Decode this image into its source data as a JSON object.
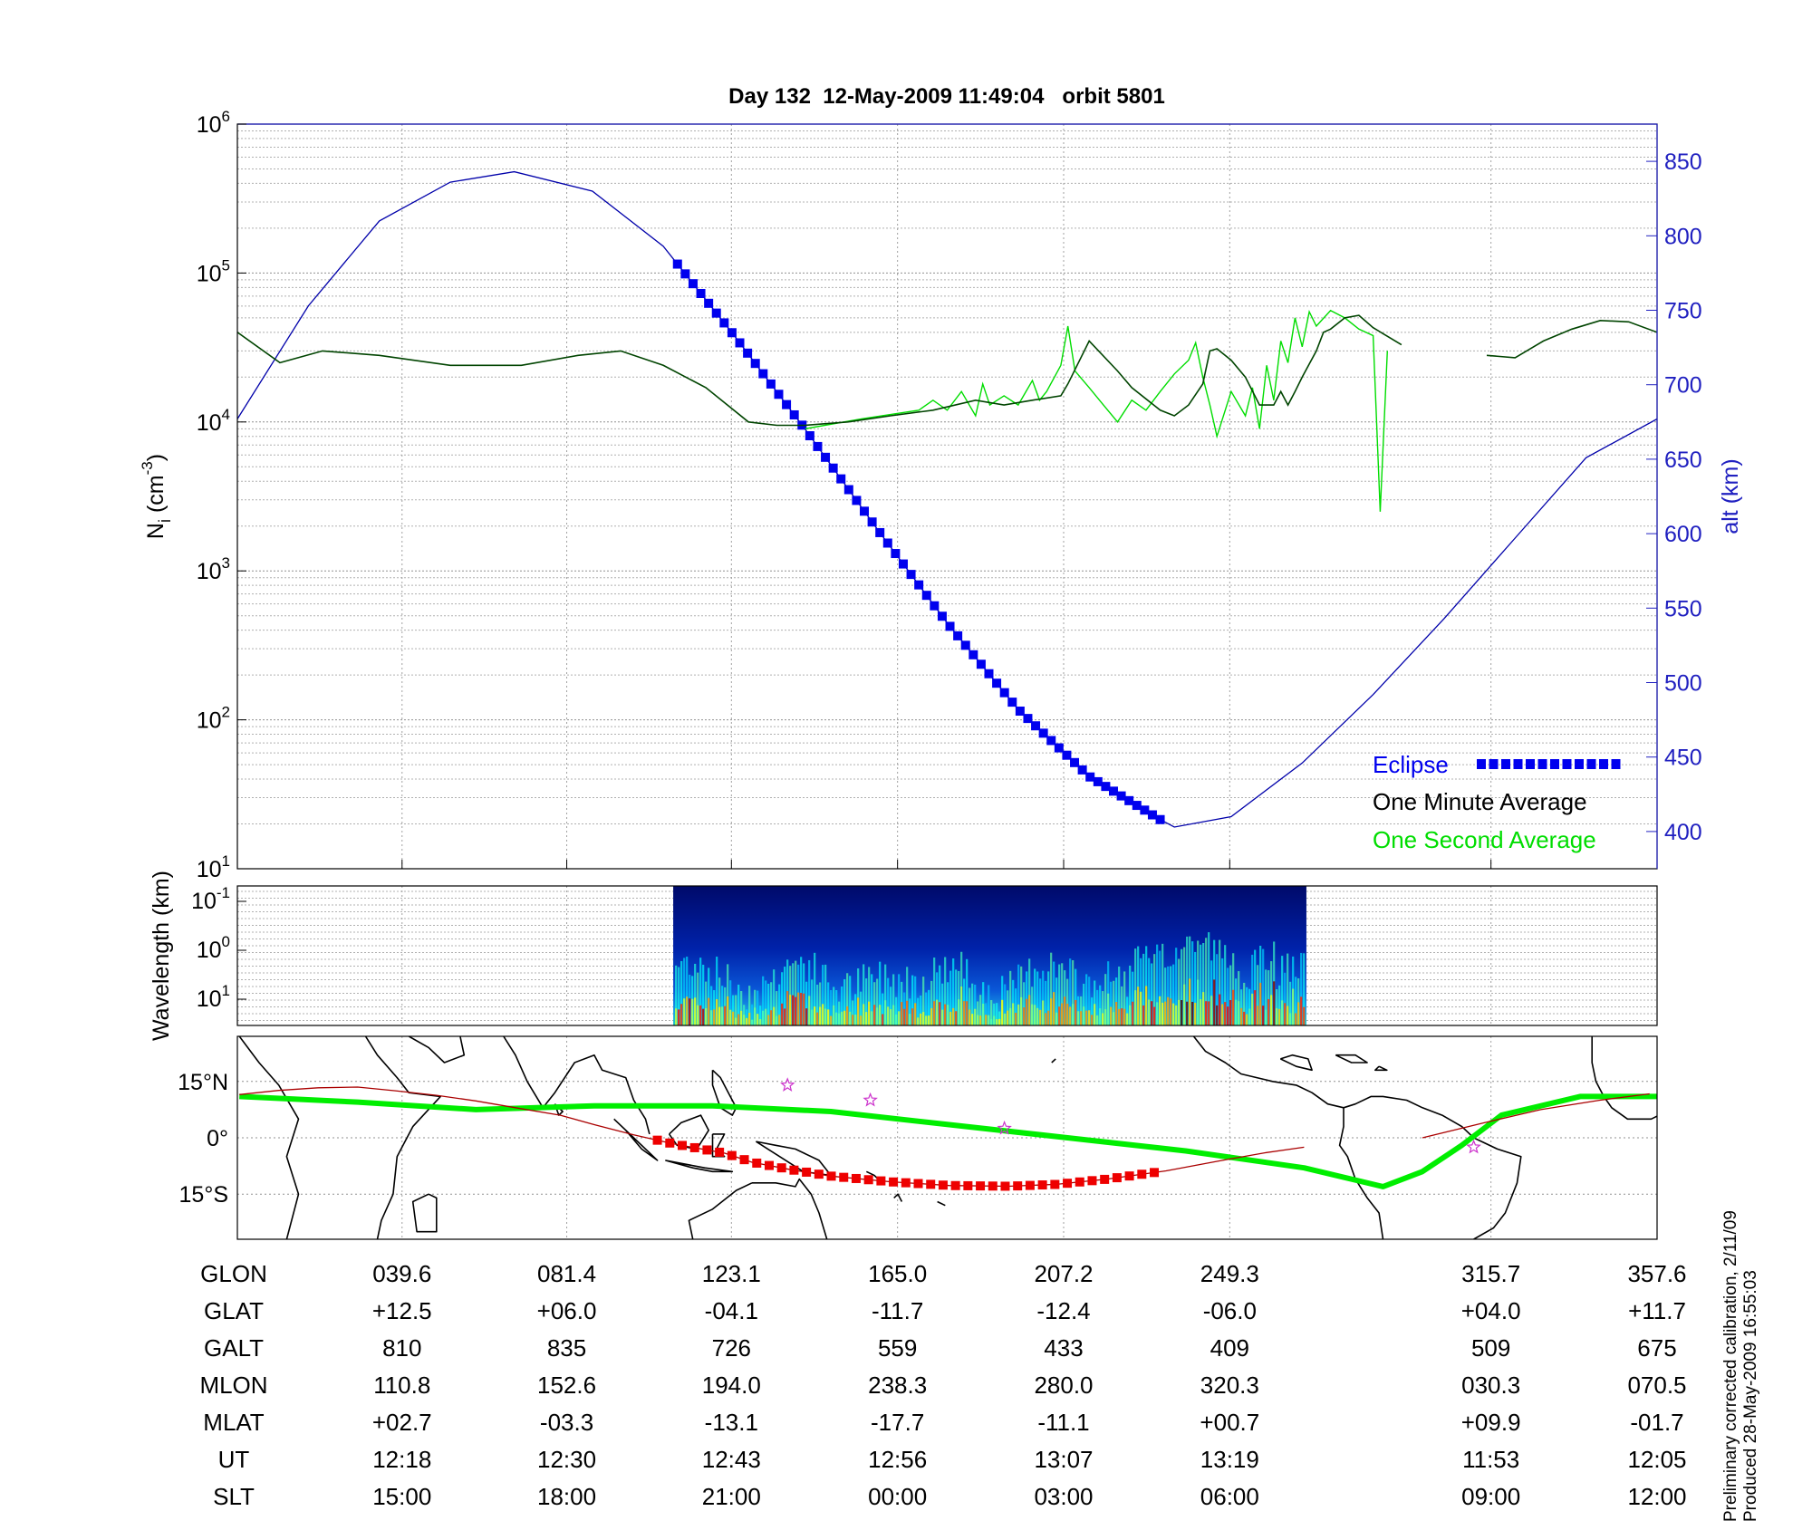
{
  "figure": {
    "title": "Day 132  12-May-2009 11:49:04   orbit 5801",
    "side_note_1": "Preliminary corrected calibration, 2/11/09",
    "side_note_2": "Produced 28-May-2009 16:55:03"
  },
  "colors": {
    "density_1s": "#00dd00",
    "density_1min": "#004400",
    "altitude": "#0000aa",
    "eclipse": "#0000ee",
    "track_eclipse": "#ee0000",
    "track_line": "#aa0000",
    "magnetic_equator": "#00ee00",
    "right_axis": "#2020c0",
    "star": "#cc33cc"
  },
  "chart_data": [
    {
      "type": "line",
      "panel": "ion density and altitude",
      "ylabel_main": "N",
      "ylabel_sub": "i",
      "ylabel_tail": " (cm",
      "ylabel_exp": "-3",
      "ylabel_close": ")",
      "y_scale": "log",
      "ylim": [
        10,
        1000000
      ],
      "y_ticks": [
        {
          "base": "10",
          "exp": "1",
          "value": 10
        },
        {
          "base": "10",
          "exp": "2",
          "value": 100
        },
        {
          "base": "10",
          "exp": "3",
          "value": 1000
        },
        {
          "base": "10",
          "exp": "4",
          "value": 10000
        },
        {
          "base": "10",
          "exp": "5",
          "value": 100000
        },
        {
          "base": "10",
          "exp": "6",
          "value": 1000000
        }
      ],
      "y2label": "alt (km)",
      "y2lim": [
        375,
        875
      ],
      "y2_ticks": [
        "400",
        "450",
        "500",
        "550",
        "600",
        "650",
        "700",
        "750",
        "800",
        "850"
      ],
      "x_frac_range": [
        0,
        1
      ],
      "grid": true,
      "legend_position": "bottom-right",
      "legend": [
        {
          "label": "Eclipse",
          "color": "#0000ee"
        },
        {
          "label": "One Minute Average",
          "color": "#000000"
        },
        {
          "label": "One Second Average",
          "color": "#00dd00"
        }
      ],
      "series": [
        {
          "name": "One Minute Average",
          "x": [
            0,
            0.03,
            0.06,
            0.1,
            0.15,
            0.2,
            0.24,
            0.27,
            0.3,
            0.33,
            0.36,
            0.38,
            0.4,
            0.43,
            0.46,
            0.49,
            0.52,
            0.54,
            0.56,
            0.58,
            0.585,
            0.6,
            0.62,
            0.63,
            0.65,
            0.66,
            0.67,
            0.68,
            0.685,
            0.69,
            0.7,
            0.71,
            0.72,
            0.73,
            0.735,
            0.74,
            0.745,
            0.75,
            0.76,
            0.765,
            0.77,
            0.78,
            0.79,
            0.8,
            0.82,
            0.84,
            0.85,
            0.86,
            0.88,
            0.9,
            0.92,
            0.94,
            0.96,
            0.98,
            1.0
          ],
          "y": [
            40000,
            25000,
            30000,
            28000,
            24000,
            24000,
            28000,
            30000,
            24000,
            17000,
            10000,
            9500,
            9500,
            10000,
            11000,
            12000,
            14000,
            13000,
            14000,
            15000,
            18000,
            35000,
            22000,
            17000,
            12000,
            11000,
            13000,
            18000,
            30000,
            31000,
            26000,
            20000,
            13000,
            13000,
            16000,
            13000,
            16000,
            20000,
            30000,
            40000,
            42000,
            50000,
            52000,
            43000,
            33000,
            null,
            null,
            null,
            28000,
            27000,
            35000,
            42000,
            48000,
            47000,
            40000
          ]
        },
        {
          "name": "One Second Average",
          "x": [
            0.4,
            0.44,
            0.48,
            0.49,
            0.5,
            0.51,
            0.52,
            0.525,
            0.53,
            0.54,
            0.55,
            0.56,
            0.565,
            0.57,
            0.58,
            0.585,
            0.59,
            0.6,
            0.61,
            0.62,
            0.63,
            0.64,
            0.65,
            0.66,
            0.67,
            0.675,
            0.68,
            0.685,
            0.69,
            0.7,
            0.71,
            0.715,
            0.72,
            0.725,
            0.73,
            0.735,
            0.74,
            0.745,
            0.75,
            0.755,
            0.76,
            0.77,
            0.78,
            0.79,
            0.8,
            0.805,
            0.81
          ],
          "y": [
            9000,
            10500,
            12000,
            14000,
            12000,
            16000,
            11000,
            18000,
            13000,
            15000,
            13000,
            19000,
            14000,
            16000,
            24000,
            44000,
            22000,
            17000,
            13000,
            10000,
            14000,
            12000,
            16000,
            21000,
            26000,
            34000,
            20000,
            13000,
            8000,
            16000,
            11000,
            17000,
            9000,
            24000,
            14000,
            35000,
            25000,
            50000,
            32000,
            55000,
            44000,
            56000,
            50000,
            42000,
            38000,
            2500,
            30000
          ]
        },
        {
          "name": "alt (km)",
          "axis": "right",
          "x": [
            0,
            0.05,
            0.1,
            0.15,
            0.195,
            0.25,
            0.3,
            0.35,
            0.4,
            0.45,
            0.5,
            0.55,
            0.6,
            0.65,
            0.66,
            0.7,
            0.75,
            0.8,
            0.85,
            0.9,
            0.95,
            1.0
          ],
          "y": [
            677,
            753,
            810,
            836,
            843,
            830,
            793,
            733,
            670,
            604,
            540,
            482,
            437,
            408,
            403,
            410,
            446,
            492,
            543,
            597,
            651,
            677
          ]
        }
      ],
      "eclipse_x_range": [
        0.31,
        0.65
      ]
    },
    {
      "type": "heatmap",
      "panel": "irregularity spectrogram",
      "ylabel": "Wavelength (km)",
      "y_ticks": [
        {
          "base": "10",
          "exp": "-1"
        },
        {
          "base": "10",
          "exp": "0"
        },
        {
          "base": "10",
          "exp": "1"
        }
      ],
      "colormap": "jet",
      "x_frac_range": [
        0.307,
        0.753
      ]
    },
    {
      "type": "map",
      "panel": "satellite ground track",
      "y_ticks": [
        "15°N",
        "0°",
        "15°S"
      ],
      "lat_range": [
        -27,
        27
      ],
      "lon_range": [
        -0.5,
        359.5
      ],
      "ground_track": {
        "lon": [
          0,
          10,
          20,
          30,
          39.6,
          50,
          60,
          70,
          81.4,
          90,
          100,
          110,
          123.1,
          130,
          140,
          150,
          165.0,
          180,
          195,
          207.2,
          220,
          235,
          249.3,
          260,
          270
        ],
        "lat": [
          11.5,
          12.6,
          13.3,
          13.5,
          12.5,
          11.3,
          9.8,
          8.0,
          6.0,
          3.5,
          0.8,
          -1.6,
          -4.1,
          -6.5,
          -8.5,
          -10.2,
          -11.7,
          -12.7,
          -12.9,
          -12.4,
          -11.0,
          -8.8,
          -6.0,
          -4.0,
          -2.5
        ]
      },
      "ground_track_2": {
        "lon": [
          300,
          315.7,
          330,
          345,
          357.6
        ],
        "lat": [
          0.0,
          4.0,
          7.5,
          10.0,
          11.7
        ]
      },
      "eclipse_lon_range": [
        106,
        232
      ],
      "magnetic_equator": {
        "lon": [
          0,
          30,
          60,
          90,
          120,
          150,
          180,
          210,
          240,
          270,
          290,
          300,
          310,
          320,
          340,
          360
        ],
        "lat": [
          11,
          9.5,
          7.5,
          8.5,
          8.5,
          7,
          3.5,
          0,
          -3.5,
          -8,
          -13,
          -9,
          -2,
          6,
          11,
          11
        ]
      },
      "stars": [
        {
          "lon": 139,
          "lat": 14
        },
        {
          "lon": 160,
          "lat": 10
        },
        {
          "lon": 194,
          "lat": 2.5
        },
        {
          "lon": 313,
          "lat": -2.5
        }
      ]
    }
  ],
  "table": {
    "row_labels": [
      "GLON",
      "GLAT",
      "GALT",
      "MLON",
      "MLAT",
      "UT",
      "SLT"
    ],
    "columns": [
      {
        "x": 0.116,
        "values": [
          "039.6",
          "+12.5",
          "810",
          "110.8",
          "+02.7",
          "12:18",
          "15:00"
        ]
      },
      {
        "x": 0.232,
        "values": [
          "081.4",
          "+06.0",
          "835",
          "152.6",
          "-03.3",
          "12:30",
          "18:00"
        ]
      },
      {
        "x": 0.348,
        "values": [
          "123.1",
          "-04.1",
          "726",
          "194.0",
          "-13.1",
          "12:43",
          "21:00"
        ]
      },
      {
        "x": 0.465,
        "values": [
          "165.0",
          "-11.7",
          "559",
          "238.3",
          "-17.7",
          "12:56",
          "00:00"
        ]
      },
      {
        "x": 0.582,
        "values": [
          "207.2",
          "-12.4",
          "433",
          "280.0",
          "-11.1",
          "13:07",
          "03:00"
        ]
      },
      {
        "x": 0.699,
        "values": [
          "249.3",
          "-06.0",
          "409",
          "320.3",
          "+00.7",
          "13:19",
          "06:00"
        ]
      },
      {
        "x": 0.883,
        "values": [
          "315.7",
          "+04.0",
          "509",
          "030.3",
          "+09.9",
          "11:53",
          "09:00"
        ]
      },
      {
        "x": 1.0,
        "values": [
          "357.6",
          "+11.7",
          "675",
          "070.5",
          "-01.7",
          "12:05",
          "12:00"
        ]
      }
    ]
  }
}
